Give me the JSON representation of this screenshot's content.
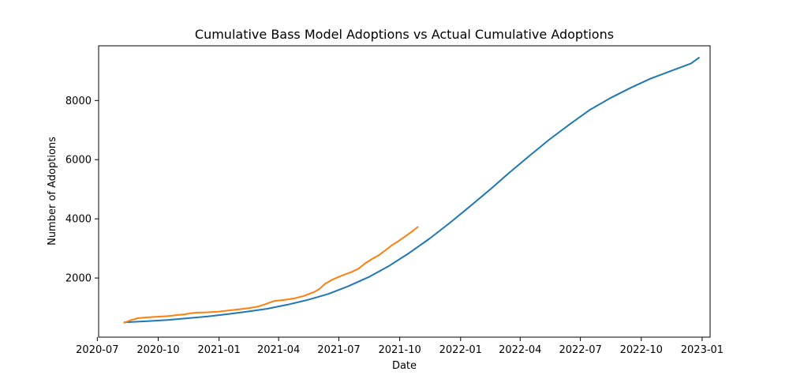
{
  "chart_data": {
    "type": "line",
    "title": "Cumulative Bass Model Adoptions vs Actual Cumulative Adoptions",
    "xlabel": "Date",
    "ylabel": "Number of Adoptions",
    "xlim": [
      "2020-07-03",
      "2023-01-13"
    ],
    "ylim": [
      0,
      9850
    ],
    "grid": false,
    "legend": "none",
    "x_ticks": [
      "2020-07",
      "2020-10",
      "2021-01",
      "2021-04",
      "2021-07",
      "2021-10",
      "2022-01",
      "2022-04",
      "2022-07",
      "2022-10",
      "2023-01"
    ],
    "y_ticks": [
      2000,
      4000,
      6000,
      8000
    ],
    "series": [
      {
        "color": "#1f77b4",
        "points": [
          [
            "2020-08-10",
            500
          ],
          [
            "2020-09-15",
            540
          ],
          [
            "2020-10-15",
            580
          ],
          [
            "2020-11-15",
            640
          ],
          [
            "2020-12-15",
            700
          ],
          [
            "2021-01-15",
            780
          ],
          [
            "2021-02-15",
            870
          ],
          [
            "2021-03-15",
            960
          ],
          [
            "2021-04-15",
            1100
          ],
          [
            "2021-05-15",
            1260
          ],
          [
            "2021-06-15",
            1460
          ],
          [
            "2021-07-15",
            1720
          ],
          [
            "2021-08-15",
            2030
          ],
          [
            "2021-09-15",
            2410
          ],
          [
            "2021-10-15",
            2840
          ],
          [
            "2021-11-15",
            3330
          ],
          [
            "2021-12-15",
            3850
          ],
          [
            "2022-01-15",
            4420
          ],
          [
            "2022-02-15",
            5000
          ],
          [
            "2022-03-15",
            5550
          ],
          [
            "2022-04-15",
            6130
          ],
          [
            "2022-05-15",
            6680
          ],
          [
            "2022-06-15",
            7200
          ],
          [
            "2022-07-15",
            7680
          ],
          [
            "2022-08-15",
            8080
          ],
          [
            "2022-09-15",
            8430
          ],
          [
            "2022-10-15",
            8740
          ],
          [
            "2022-11-15",
            9000
          ],
          [
            "2022-12-15",
            9250
          ],
          [
            "2022-12-28",
            9460
          ]
        ]
      },
      {
        "color": "#ff7f0e",
        "points": [
          [
            "2020-08-10",
            480
          ],
          [
            "2020-08-20",
            570
          ],
          [
            "2020-08-31",
            640
          ],
          [
            "2020-09-15",
            670
          ],
          [
            "2020-09-30",
            690
          ],
          [
            "2020-10-15",
            710
          ],
          [
            "2020-10-31",
            750
          ],
          [
            "2020-11-10",
            770
          ],
          [
            "2020-11-20",
            810
          ],
          [
            "2020-11-30",
            830
          ],
          [
            "2020-12-15",
            840
          ],
          [
            "2020-12-31",
            860
          ],
          [
            "2021-01-15",
            900
          ],
          [
            "2021-01-31",
            940
          ],
          [
            "2021-02-15",
            980
          ],
          [
            "2021-02-28",
            1030
          ],
          [
            "2021-03-10",
            1100
          ],
          [
            "2021-03-25",
            1220
          ],
          [
            "2021-04-10",
            1260
          ],
          [
            "2021-04-25",
            1310
          ],
          [
            "2021-05-10",
            1400
          ],
          [
            "2021-05-25",
            1530
          ],
          [
            "2021-06-01",
            1620
          ],
          [
            "2021-06-10",
            1800
          ],
          [
            "2021-06-20",
            1930
          ],
          [
            "2021-06-30",
            2030
          ],
          [
            "2021-07-10",
            2120
          ],
          [
            "2021-07-20",
            2200
          ],
          [
            "2021-07-31",
            2320
          ],
          [
            "2021-08-10",
            2500
          ],
          [
            "2021-08-20",
            2640
          ],
          [
            "2021-08-31",
            2780
          ],
          [
            "2021-09-10",
            2950
          ],
          [
            "2021-09-20",
            3120
          ],
          [
            "2021-09-30",
            3260
          ],
          [
            "2021-10-10",
            3420
          ],
          [
            "2021-10-20",
            3580
          ],
          [
            "2021-10-29",
            3740
          ]
        ]
      }
    ]
  }
}
